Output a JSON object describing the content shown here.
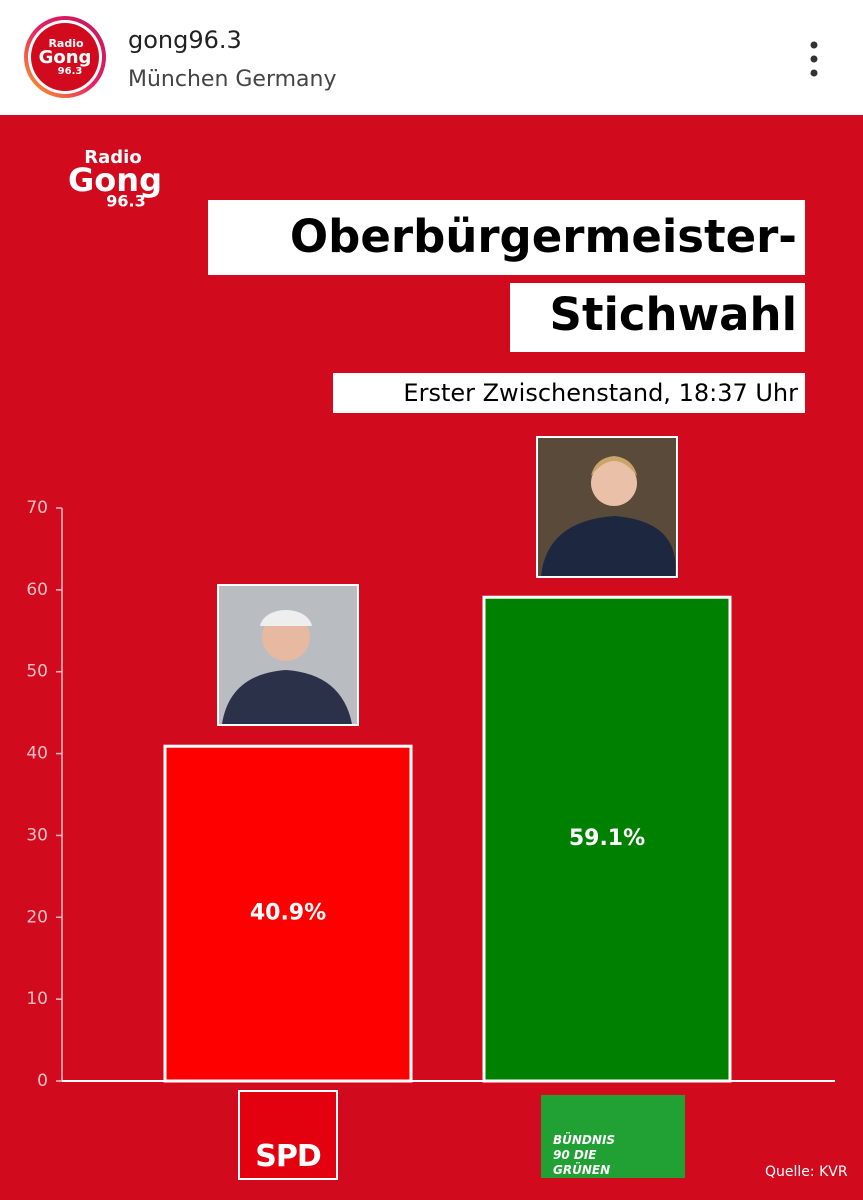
{
  "header": {
    "account": "gong96.3",
    "location": "München Germany",
    "logo": {
      "line1": "Radio",
      "line2": "Gong",
      "line3": "96.3"
    }
  },
  "chart_data": {
    "type": "bar",
    "title": [
      "Oberbürgermeister-",
      "Stichwahl"
    ],
    "subtitle": "Erster Zwischenstand, 18:37 Uhr",
    "categories": [
      "SPD",
      "BÜNDNIS 90 DIE GRÜNEN"
    ],
    "values": [
      40.9,
      59.1
    ],
    "value_labels": [
      "40.9%",
      "59.1%"
    ],
    "colors": [
      "#ff0000",
      "#008000"
    ],
    "ylim": [
      0,
      70
    ],
    "yticks": [
      0,
      10,
      20,
      30,
      40,
      50,
      60,
      70
    ],
    "source": "Quelle: KVR"
  }
}
